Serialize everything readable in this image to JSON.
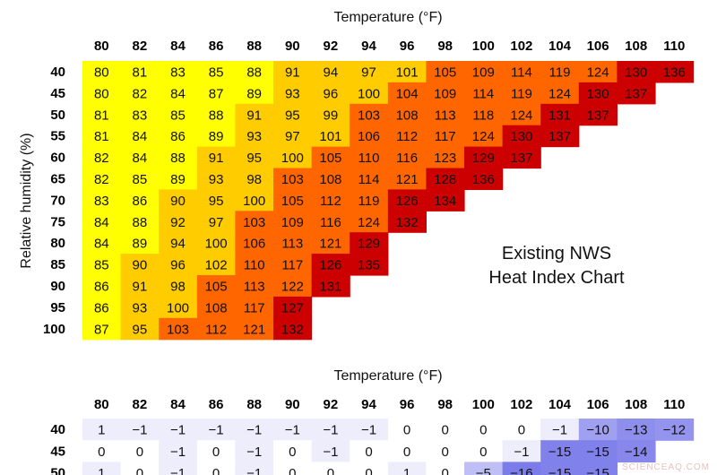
{
  "chart_data": [
    {
      "type": "heatmap",
      "title": "",
      "xlabel": "Temperature (°F)",
      "ylabel": "Relative humidity (%)",
      "x": [
        "80",
        "82",
        "84",
        "86",
        "88",
        "90",
        "92",
        "94",
        "96",
        "98",
        "100",
        "102",
        "104",
        "106",
        "108",
        "110"
      ],
      "y": [
        "40",
        "45",
        "50",
        "55",
        "60",
        "65",
        "70",
        "75",
        "80",
        "85",
        "90",
        "95",
        "100"
      ],
      "rows": [
        [
          80,
          81,
          83,
          85,
          88,
          91,
          94,
          97,
          101,
          105,
          109,
          114,
          119,
          124,
          130,
          136
        ],
        [
          80,
          82,
          84,
          87,
          89,
          93,
          96,
          100,
          104,
          109,
          114,
          119,
          124,
          130,
          137
        ],
        [
          81,
          83,
          85,
          88,
          91,
          95,
          99,
          103,
          108,
          113,
          118,
          124,
          131,
          137
        ],
        [
          81,
          84,
          86,
          89,
          93,
          97,
          101,
          106,
          112,
          117,
          124,
          130,
          137
        ],
        [
          82,
          84,
          88,
          91,
          95,
          100,
          105,
          110,
          116,
          123,
          129,
          137
        ],
        [
          82,
          85,
          89,
          93,
          98,
          103,
          108,
          114,
          121,
          128,
          136
        ],
        [
          83,
          86,
          90,
          95,
          100,
          105,
          112,
          119,
          126,
          134
        ],
        [
          84,
          88,
          92,
          97,
          103,
          109,
          116,
          124,
          132
        ],
        [
          84,
          89,
          94,
          100,
          106,
          113,
          121,
          129
        ],
        [
          85,
          90,
          96,
          102,
          110,
          117,
          126,
          135
        ],
        [
          86,
          91,
          98,
          105,
          113,
          122,
          131
        ],
        [
          86,
          93,
          100,
          108,
          117,
          127
        ],
        [
          87,
          95,
          103,
          112,
          121,
          132
        ]
      ],
      "annotation": [
        "Existing NWS",
        "Heat Index Chart"
      ],
      "colors": {
        "yellow": "#ffff00",
        "light_orange": "#ffcc00",
        "orange": "#ff6600",
        "red": "#cc0000"
      },
      "color_thresholds": [
        90,
        103,
        125
      ]
    },
    {
      "type": "heatmap",
      "title": "",
      "xlabel": "Temperature (°F)",
      "ylabel": "",
      "x": [
        "80",
        "82",
        "84",
        "86",
        "88",
        "90",
        "92",
        "94",
        "96",
        "98",
        "100",
        "102",
        "104",
        "106",
        "108",
        "110"
      ],
      "y": [
        "40",
        "45",
        "50"
      ],
      "rows": [
        [
          1,
          -1,
          -1,
          -1,
          -1,
          -1,
          -1,
          -1,
          0,
          0,
          0,
          0,
          -1,
          -10,
          -13,
          -12
        ],
        [
          0,
          0,
          -1,
          0,
          -1,
          0,
          -1,
          0,
          0,
          0,
          0,
          -1,
          -15,
          -15,
          -14
        ],
        [
          1,
          0,
          -1,
          0,
          -1,
          0,
          0,
          0,
          1,
          0,
          -5,
          -16,
          -15,
          -15
        ]
      ],
      "colors": {
        "scale_min": "#ffffff",
        "scale_max": "#7b7bea"
      }
    }
  ],
  "watermark": "SCIENCEAQ.COM"
}
